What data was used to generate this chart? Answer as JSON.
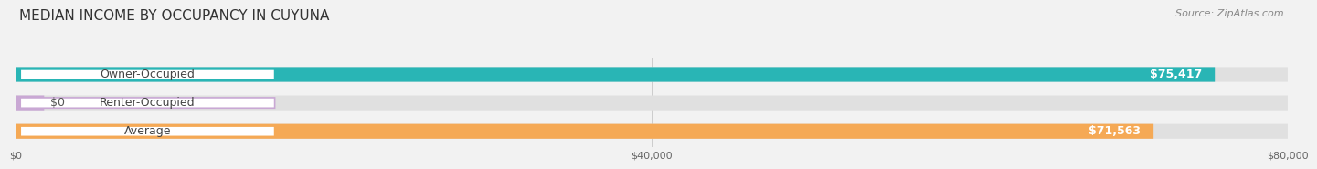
{
  "title": "MEDIAN INCOME BY OCCUPANCY IN CUYUNA",
  "source": "Source: ZipAtlas.com",
  "categories": [
    "Owner-Occupied",
    "Renter-Occupied",
    "Average"
  ],
  "values": [
    75417,
    0,
    71563
  ],
  "bar_colors": [
    "#29b5b5",
    "#c9a8d4",
    "#f5a955"
  ],
  "bar_labels": [
    "$75,417",
    "$0",
    "$71,563"
  ],
  "xlim": [
    0,
    80000
  ],
  "xticks": [
    0,
    40000,
    80000
  ],
  "xtick_labels": [
    "$0",
    "$40,000",
    "$80,000"
  ],
  "background_color": "#f2f2f2",
  "bar_bg_color": "#e0e0e0",
  "title_fontsize": 11,
  "source_fontsize": 8,
  "label_fontsize": 9,
  "value_fontsize": 9
}
